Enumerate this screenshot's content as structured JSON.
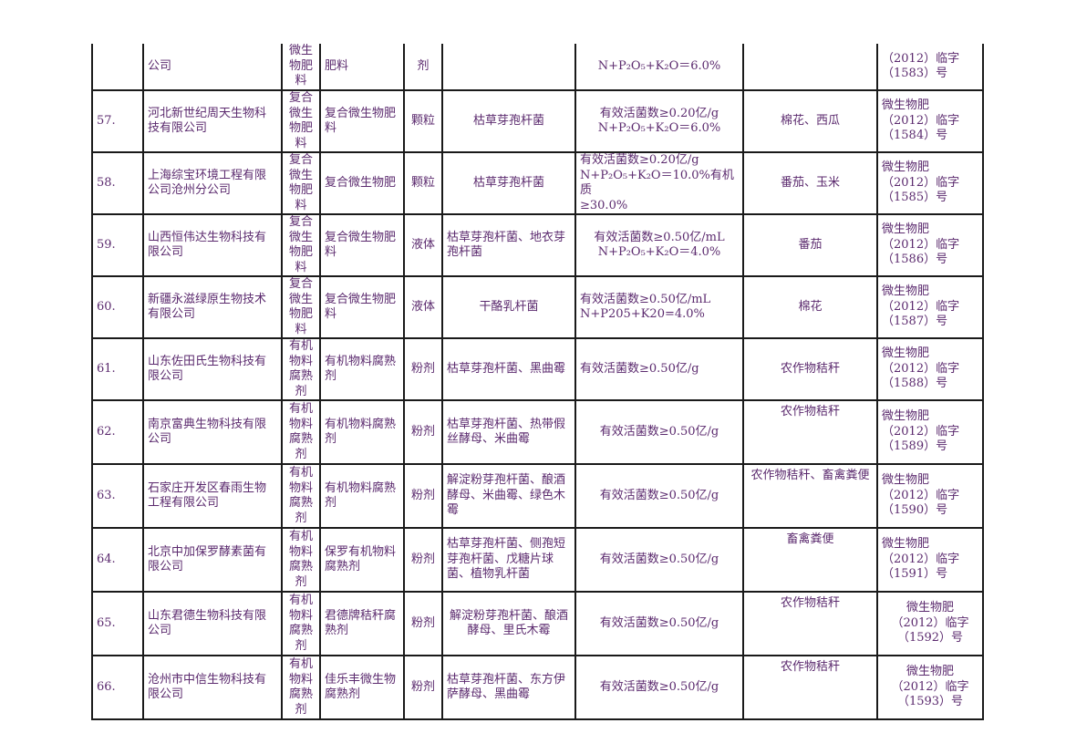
{
  "rows": [
    {
      "no": "",
      "company": "公司",
      "type": "微生物肥料",
      "name": "肥料",
      "form": "剂",
      "strain": "",
      "tech": [
        "N+P₂O₅+K₂O＝6.0%"
      ],
      "crop": "",
      "reg": [
        "（2012）临字",
        "（1583）号"
      ]
    },
    {
      "no": "57.",
      "company": "河北新世纪周天生物科技有限公司",
      "type": "复合微生物肥料",
      "name": "复合微生物肥料",
      "form": "颗粒",
      "strain": "枯草芽孢杆菌",
      "tech": [
        "有效活菌数≥0.20亿/g",
        "N+P₂O₅+K₂O＝6.0%"
      ],
      "crop": "棉花、西瓜",
      "reg": [
        "微生物肥",
        "（2012）临字",
        "（1584）号"
      ]
    },
    {
      "no": "58.",
      "company": "上海综宝环境工程有限公司沧州分公司",
      "type": "复合微生物肥料",
      "name": "复合微生物肥",
      "form": "颗粒",
      "strain": "枯草芽孢杆菌",
      "tech": [
        "有效活菌数≥0.20亿/g",
        "N+P₂O₅+K₂O＝10.0%有机质",
        "≥30.0%"
      ],
      "crop": "番茄、玉米",
      "reg": [
        "微生物肥",
        "（2012）临字",
        "（1585）号"
      ]
    },
    {
      "no": "59.",
      "company": "山西恒伟达生物科技有限公司",
      "type": "复合微生物肥料",
      "name": "复合微生物肥料",
      "form": "液体",
      "strain": "枯草芽孢杆菌、地衣芽孢杆菌",
      "tech": [
        "有效活菌数≥0.50亿/mL",
        "N+P₂O₅+K₂O＝4.0%"
      ],
      "crop": "番茄",
      "reg": [
        "微生物肥",
        "（2012）临字",
        "（1586）号"
      ]
    },
    {
      "no": "60.",
      "company": "新疆永滋绿原生物技术有限公司",
      "type": "复合微生物肥料",
      "name": "复合微生物肥料",
      "form": "液体",
      "strain": "干酪乳杆菌",
      "tech": [
        "有效活菌数≥0.50亿/mL",
        "N+P205+K20=4.0%"
      ],
      "crop": "棉花",
      "reg": [
        "微生物肥",
        "（2012）临字",
        "（1587）号"
      ]
    },
    {
      "no": "61.",
      "company": "山东佐田氏生物科技有限公司",
      "type": "有机物料腐熟剂",
      "name": "有机物料腐熟剂",
      "form": "粉剂",
      "strain": "枯草芽孢杆菌、黑曲霉",
      "tech": [
        "有效活菌数≥0.50亿/g"
      ],
      "crop": "农作物秸秆",
      "reg": [
        "微生物肥",
        "（2012）临字",
        "（1588）号"
      ]
    },
    {
      "no": "62.",
      "company": "南京富典生物科技有限公司",
      "type": "有机物料腐熟剂",
      "name": "有机物料腐熟剂",
      "form": "粉剂",
      "strain": "枯草芽孢杆菌、热带假丝酵母、米曲霉",
      "tech": [
        "有效活菌数≥0.50亿/g"
      ],
      "crop": "农作物秸秆",
      "reg": [
        "微生物肥",
        "（2012）临字",
        "（1589）号"
      ]
    },
    {
      "no": "63.",
      "company": "石家庄开发区春雨生物工程有限公司",
      "type": "有机物料腐熟剂",
      "name": "有机物料腐熟剂",
      "form": "粉剂",
      "strain": "解淀粉芽孢杆菌、酿酒酵母、米曲霉、绿色木霉",
      "tech": [
        "有效活菌数≥0.50亿/g"
      ],
      "crop": "农作物秸秆、畜禽粪便",
      "reg": [
        "微生物肥",
        "（2012）临字",
        "（1590）号"
      ]
    },
    {
      "no": "64.",
      "company": "北京中加保罗酵素菌有限公司",
      "type": "有机物料腐熟剂",
      "name": "保罗有机物料腐熟剂",
      "form": "粉剂",
      "strain": "枯草芽孢杆菌、侧孢短芽孢杆菌、戊糖片球菌、植物乳杆菌",
      "tech": [
        "有效活菌数≥0.50亿/g"
      ],
      "crop": "畜禽粪便",
      "reg": [
        "微生物肥",
        "（2012）临字",
        "（1591）号"
      ]
    },
    {
      "no": "65.",
      "company": "山东君德生物科技有限公司",
      "type": "有机物料腐熟剂",
      "name": "君德牌秸秆腐熟剂",
      "form": "粉剂",
      "strain": "解淀粉芽孢杆菌、酿酒酵母、里氏木霉",
      "tech": [
        "有效活菌数≥0.50亿/g"
      ],
      "crop": "农作物秸秆",
      "reg": [
        "微生物肥",
        "（2012）临字",
        "（1592）号"
      ]
    },
    {
      "no": "66.",
      "company": "沧州市中信生物科技有限公司",
      "type": "有机物料腐熟剂",
      "name": "佳乐丰微生物腐熟剂",
      "form": "粉剂",
      "strain": "枯草芽孢杆菌、东方伊萨酵母、黑曲霉",
      "tech": [
        "有效活菌数≥0.50亿/g"
      ],
      "crop": "农作物秸秆",
      "reg": [
        "微生物肥",
        "（2012）临字",
        "（1593）号"
      ]
    }
  ]
}
